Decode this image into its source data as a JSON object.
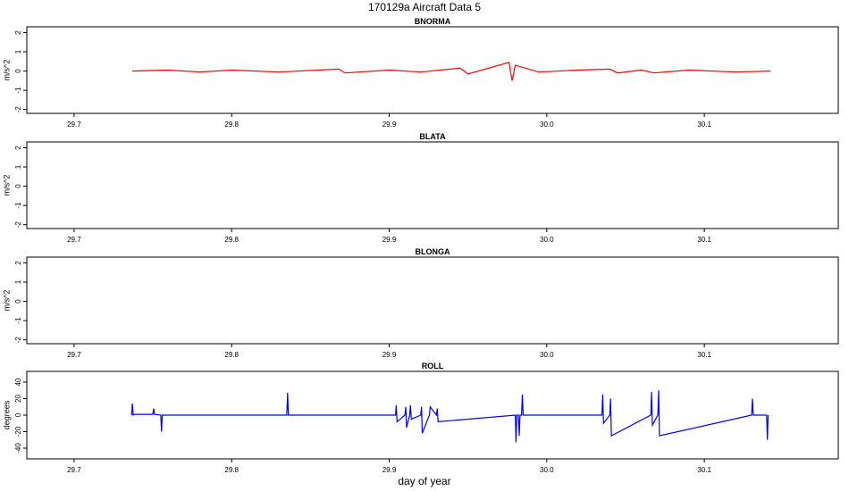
{
  "title": "170129a   Aircraft Data 5",
  "x_axis_label": "day of year",
  "colors": {
    "accel": "#ff0000",
    "roll": "#0000ff",
    "axis": "#000000"
  },
  "chart_data": [
    {
      "type": "line",
      "title": "BNORMA",
      "ylabel": "m/s^2",
      "color": "#ff0000",
      "xlim": [
        29.67,
        30.185
      ],
      "ylim": [
        -2.2,
        2.3
      ],
      "x_ticks": [
        29.7,
        29.8,
        29.9,
        30.0,
        30.1
      ],
      "x_tick_labels": [
        "29.7",
        "29.8",
        "29.9",
        "30.0",
        "30.1"
      ],
      "y_ticks": [
        -2,
        -1,
        0,
        1,
        2
      ],
      "y_tick_labels": [
        "-2",
        "-1",
        "0",
        "1",
        "2"
      ],
      "series": [
        {
          "x": [
            29.737,
            29.76,
            29.78,
            29.8,
            29.83,
            29.868,
            29.872,
            29.9,
            29.92,
            29.945,
            29.95,
            29.976,
            29.978,
            29.98,
            29.995,
            30.02,
            30.04,
            30.045,
            30.06,
            30.068,
            30.09,
            30.12,
            30.142
          ],
          "y": [
            0.0,
            0.05,
            -0.05,
            0.05,
            -0.05,
            0.1,
            -0.1,
            0.05,
            -0.05,
            0.15,
            -0.15,
            0.45,
            -0.5,
            0.3,
            -0.05,
            0.05,
            0.1,
            -0.1,
            0.05,
            -0.1,
            0.05,
            -0.05,
            0.0
          ]
        }
      ]
    },
    {
      "type": "line",
      "title": "BLATA",
      "ylabel": "m/s^2",
      "color": "#ff0000",
      "xlim": [
        29.67,
        30.185
      ],
      "ylim": [
        -2.2,
        2.3
      ],
      "x_ticks": [
        29.7,
        29.8,
        29.9,
        30.0,
        30.1
      ],
      "x_tick_labels": [
        "29.7",
        "29.8",
        "29.9",
        "30.0",
        "30.1"
      ],
      "y_ticks": [
        -2,
        -1,
        0,
        1,
        2
      ],
      "y_tick_labels": [
        "-2",
        "-1",
        "0",
        "1",
        "2"
      ],
      "series": []
    },
    {
      "type": "line",
      "title": "BLONGA",
      "ylabel": "m/s^2",
      "color": "#ff0000",
      "xlim": [
        29.67,
        30.185
      ],
      "ylim": [
        -2.2,
        2.3
      ],
      "x_ticks": [
        29.7,
        29.8,
        29.9,
        30.0,
        30.1
      ],
      "x_tick_labels": [
        "29.7",
        "29.8",
        "29.9",
        "30.0",
        "30.1"
      ],
      "y_ticks": [
        -2,
        -1,
        0,
        1,
        2
      ],
      "y_tick_labels": [
        "-2",
        "-1",
        "0",
        "1",
        "2"
      ],
      "series": []
    },
    {
      "type": "line",
      "title": "ROLL",
      "ylabel": "degrees",
      "color": "#0000ff",
      "xlim": [
        29.67,
        30.185
      ],
      "ylim": [
        -53,
        53
      ],
      "x_ticks": [
        29.7,
        29.8,
        29.9,
        30.0,
        30.1
      ],
      "x_tick_labels": [
        "29.7",
        "29.8",
        "29.9",
        "30.0",
        "30.1"
      ],
      "y_ticks": [
        -40,
        -20,
        0,
        20,
        40
      ],
      "y_tick_labels": [
        "-40",
        "-20",
        "0",
        "20",
        "40"
      ],
      "series": [
        {
          "x": [
            29.7365,
            29.737,
            29.7375,
            29.738,
            29.75,
            29.7505,
            29.751,
            29.755,
            29.7555,
            29.756,
            29.835,
            29.8355,
            29.836,
            29.904,
            29.9045,
            29.905,
            29.91,
            29.9105,
            29.911,
            29.913,
            29.9135,
            29.914,
            29.92,
            29.9205,
            29.921,
            29.9255,
            29.926,
            29.93,
            29.9305,
            29.931,
            29.98,
            29.9805,
            29.981,
            29.982,
            29.9825,
            29.983,
            29.984,
            29.9845,
            29.985,
            30.035,
            30.0355,
            30.036,
            30.04,
            30.0405,
            30.041,
            30.066,
            30.0665,
            30.067,
            30.0705,
            30.071,
            30.0715,
            30.13,
            30.1305,
            30.131,
            30.1395,
            30.14,
            30.1405
          ],
          "y": [
            0,
            14,
            0,
            1,
            1,
            8,
            1,
            0,
            -20,
            0,
            0,
            27,
            0,
            0,
            12,
            -8,
            0,
            10,
            -15,
            0,
            12,
            -5,
            0,
            10,
            -22,
            0,
            10,
            0,
            8,
            -8,
            0,
            -33,
            0,
            0,
            -25,
            0,
            0,
            25,
            0,
            0,
            25,
            -10,
            0,
            20,
            -25,
            0,
            28,
            -12,
            0,
            30,
            -25,
            0,
            20,
            0,
            0,
            -30,
            0
          ]
        }
      ]
    }
  ]
}
